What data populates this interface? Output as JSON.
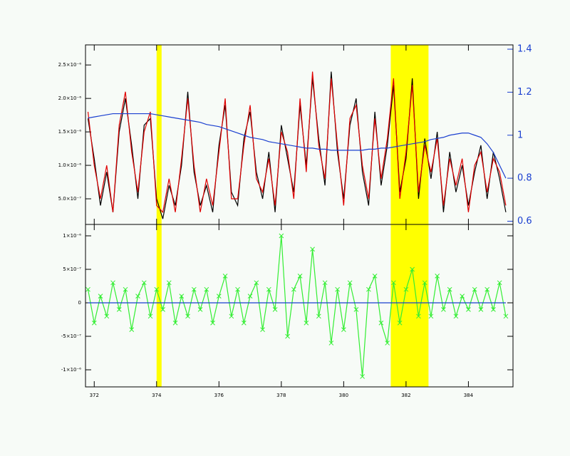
{
  "chart_data": [
    {
      "type": "line",
      "xlim": [
        371.72,
        385.43
      ],
      "ylim": [
        1.17e-07,
        2.8e-06
      ],
      "yticks": [
        {
          "value": 5e-07,
          "label": "5.0×10⁻⁷"
        },
        {
          "value": 1e-06,
          "label": "1.0×10⁻⁶"
        },
        {
          "value": 1.5e-06,
          "label": "1.5×10⁻⁶"
        },
        {
          "value": 2e-06,
          "label": "2.0×10⁻⁶"
        },
        {
          "value": 2.5e-06,
          "label": "2.5×10⁻⁶"
        }
      ],
      "y2lim": [
        0.585,
        1.42
      ],
      "y2ticks": [
        0.6,
        0.8,
        1.0,
        1.2,
        1.4
      ],
      "y2_color": "#1a3fd0",
      "highlight_bands": [
        [
          374.0,
          374.16
        ],
        [
          381.51,
          382.72
        ]
      ],
      "band_color": "#ffff00",
      "x": [
        371.8,
        372.0,
        372.2,
        372.4,
        372.6,
        372.8,
        373.0,
        373.2,
        373.4,
        373.6,
        373.8,
        374.0,
        374.2,
        374.4,
        374.6,
        374.8,
        375.0,
        375.2,
        375.4,
        375.6,
        375.8,
        376.0,
        376.2,
        376.4,
        376.6,
        376.8,
        377.0,
        377.2,
        377.4,
        377.6,
        377.8,
        378.0,
        378.2,
        378.4,
        378.6,
        378.8,
        379.0,
        379.2,
        379.4,
        379.6,
        379.8,
        380.0,
        380.2,
        380.4,
        380.6,
        380.8,
        381.0,
        381.2,
        381.4,
        381.6,
        381.8,
        382.0,
        382.2,
        382.4,
        382.6,
        382.8,
        383.0,
        383.2,
        383.4,
        383.6,
        383.8,
        384.0,
        384.2,
        384.4,
        384.6,
        384.8,
        385.0,
        385.2
      ],
      "series": [
        {
          "color": "#000000",
          "values": [
            1.7e-06,
            1.1e-06,
            4e-07,
            9e-07,
            3e-07,
            1.5e-06,
            2e-06,
            1.3e-06,
            5e-07,
            1.6e-06,
            1.7e-06,
            5e-07,
            2e-07,
            7e-07,
            4e-07,
            1e-06,
            2.1e-06,
            9e-07,
            4e-07,
            7e-07,
            3e-07,
            1.3e-06,
            1.9e-06,
            6e-07,
            4e-07,
            1.4e-06,
            1.8e-06,
            9e-07,
            5e-07,
            1.2e-06,
            3e-07,
            1.6e-06,
            1.1e-06,
            6e-07,
            1.9e-06,
            1e-06,
            2.3e-06,
            1.4e-06,
            7e-07,
            2.4e-06,
            1.2e-06,
            5e-07,
            1.6e-06,
            2e-06,
            9e-07,
            4e-07,
            1.8e-06,
            7e-07,
            1.3e-06,
            2.2e-06,
            6e-07,
            1.1e-06,
            2.3e-06,
            5e-07,
            1.4e-06,
            8e-07,
            1.5e-06,
            3e-07,
            1.2e-06,
            6e-07,
            1e-06,
            4e-07,
            9e-07,
            1.3e-06,
            5e-07,
            1.2e-06,
            8e-07,
            3e-07
          ]
        },
        {
          "color": "#e00000",
          "values": [
            1.8e-06,
            1e-06,
            5e-07,
            1e-06,
            3e-07,
            1.6e-06,
            2.1e-06,
            1.2e-06,
            6e-07,
            1.5e-06,
            1.8e-06,
            4e-07,
            3e-07,
            8e-07,
            3e-07,
            1.1e-06,
            2e-06,
            1e-06,
            3e-07,
            8e-07,
            4e-07,
            1.2e-06,
            2e-06,
            5e-07,
            5e-07,
            1.3e-06,
            1.9e-06,
            8e-07,
            6e-07,
            1.1e-06,
            4e-07,
            1.5e-06,
            1.2e-06,
            5e-07,
            2e-06,
            9e-07,
            2.4e-06,
            1.3e-06,
            8e-07,
            2.3e-06,
            1.3e-06,
            4e-07,
            1.7e-06,
            1.9e-06,
            1e-06,
            5e-07,
            1.7e-06,
            8e-07,
            1.4e-06,
            2.3e-06,
            5e-07,
            1.2e-06,
            2.2e-06,
            6e-07,
            1.3e-06,
            9e-07,
            1.4e-06,
            4e-07,
            1.1e-06,
            7e-07,
            1.1e-06,
            3e-07,
            1e-06,
            1.2e-06,
            6e-07,
            1.1e-06,
            9e-07,
            4e-07
          ]
        },
        {
          "color": "#1a3fd0",
          "axis": "y2",
          "values": [
            1.08,
            1.085,
            1.09,
            1.095,
            1.1,
            1.1,
            1.1,
            1.1,
            1.1,
            1.1,
            1.1,
            1.095,
            1.09,
            1.085,
            1.08,
            1.075,
            1.07,
            1.065,
            1.06,
            1.05,
            1.045,
            1.04,
            1.03,
            1.02,
            1.01,
            1.0,
            0.99,
            0.985,
            0.98,
            0.97,
            0.965,
            0.96,
            0.955,
            0.95,
            0.945,
            0.94,
            0.94,
            0.935,
            0.935,
            0.93,
            0.93,
            0.93,
            0.93,
            0.93,
            0.93,
            0.935,
            0.935,
            0.94,
            0.94,
            0.945,
            0.95,
            0.955,
            0.96,
            0.965,
            0.97,
            0.98,
            0.985,
            0.99,
            1.0,
            1.005,
            1.01,
            1.01,
            1.0,
            0.99,
            0.96,
            0.92,
            0.86,
            0.8
          ]
        }
      ]
    },
    {
      "type": "line",
      "xlim": [
        371.72,
        385.43
      ],
      "xticks": [
        372,
        374,
        376,
        378,
        380,
        382,
        384
      ],
      "ylim": [
        -1.255e-06,
        1.17e-06
      ],
      "yticks": [
        {
          "value": -1e-06,
          "label": "-1×10⁻⁶"
        },
        {
          "value": -5e-07,
          "label": "-5×10⁻⁷"
        },
        0,
        {
          "value": 5e-07,
          "label": "5×10⁻⁷"
        },
        {
          "value": 1e-06,
          "label": "1×10⁻⁶"
        }
      ],
      "x": [
        371.8,
        372.0,
        372.2,
        372.4,
        372.6,
        372.8,
        373.0,
        373.2,
        373.4,
        373.6,
        373.8,
        374.0,
        374.2,
        374.4,
        374.6,
        374.8,
        375.0,
        375.2,
        375.4,
        375.6,
        375.8,
        376.0,
        376.2,
        376.4,
        376.6,
        376.8,
        377.0,
        377.2,
        377.4,
        377.6,
        377.8,
        378.0,
        378.2,
        378.4,
        378.6,
        378.8,
        379.0,
        379.2,
        379.4,
        379.6,
        379.8,
        380.0,
        380.2,
        380.4,
        380.6,
        380.8,
        381.0,
        381.2,
        381.4,
        381.6,
        381.8,
        382.0,
        382.2,
        382.4,
        382.6,
        382.8,
        383.0,
        383.2,
        383.4,
        383.6,
        383.8,
        384.0,
        384.2,
        384.4,
        384.6,
        384.8,
        385.0,
        385.2
      ],
      "series": [
        {
          "color": "#33ee33",
          "marker": "x",
          "values": [
            2e-07,
            -3e-07,
            1e-07,
            -2e-07,
            3e-07,
            -1e-07,
            2e-07,
            -4e-07,
            1e-07,
            3e-07,
            -2e-07,
            2e-07,
            -1e-07,
            3e-07,
            -3e-07,
            1e-07,
            -2e-07,
            2e-07,
            -1e-07,
            2e-07,
            -3e-07,
            1e-07,
            4e-07,
            -2e-07,
            2e-07,
            -3e-07,
            1e-07,
            3e-07,
            -4e-07,
            2e-07,
            -1e-07,
            1e-06,
            -5e-07,
            2e-07,
            4e-07,
            -3e-07,
            8e-07,
            -2e-07,
            3e-07,
            -6e-07,
            2e-07,
            -4e-07,
            3e-07,
            -1e-07,
            -1.1e-06,
            2e-07,
            4e-07,
            -3e-07,
            -6e-07,
            3e-07,
            -3e-07,
            2e-07,
            5e-07,
            -2e-07,
            3e-07,
            -2e-07,
            4e-07,
            -1e-07,
            2e-07,
            -2e-07,
            1e-07,
            -1e-07,
            2e-07,
            -1e-07,
            2e-07,
            -1e-07,
            3e-07,
            -2e-07
          ]
        },
        {
          "color": "#1a3fd0",
          "values": [
            0,
            0,
            0,
            0,
            0,
            0,
            0,
            0,
            0,
            0,
            0,
            0,
            0,
            0,
            0,
            0,
            0,
            0,
            0,
            0,
            0,
            0,
            0,
            0,
            0,
            0,
            0,
            0,
            0,
            0,
            0,
            0,
            0,
            0,
            0,
            0,
            0,
            0,
            0,
            0,
            0,
            0,
            0,
            0,
            0,
            0,
            0,
            0,
            0,
            0,
            0,
            0,
            0,
            0,
            0,
            0,
            0,
            0,
            0,
            0,
            0,
            0,
            0,
            0,
            0,
            0,
            0,
            0
          ]
        }
      ]
    }
  ]
}
